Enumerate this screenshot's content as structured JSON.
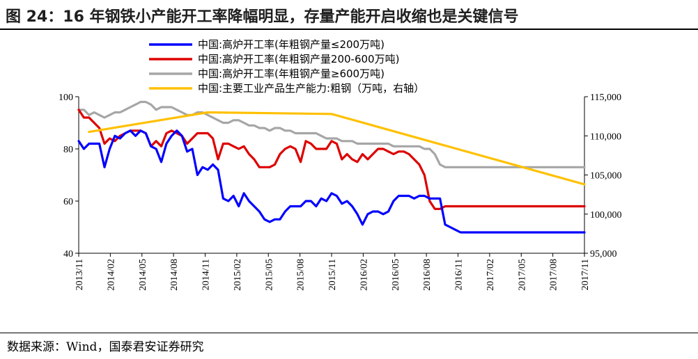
{
  "title": "图 24：16 年钢铁小产能开工率降幅明显，存量产能开启收缩也是关键信号",
  "source": "数据来源：Wind，国泰君安证券研究",
  "chart_data": {
    "type": "line",
    "x_tick_labels": [
      "2013/11",
      "2014/02",
      "2014/05",
      "2014/08",
      "2014/11",
      "2015/02",
      "2015/05",
      "2015/08",
      "2015/11",
      "2016/02",
      "2016/05",
      "2016/08",
      "2016/11",
      "2017/02",
      "2017/05",
      "2017/08",
      "2017/11"
    ],
    "x_range": [
      0,
      49
    ],
    "left_axis": {
      "ylim": [
        40,
        100
      ],
      "ticks": [
        40,
        60,
        80,
        100
      ]
    },
    "right_axis": {
      "ylim": [
        95000,
        115000
      ],
      "ticks": [
        95000,
        100000,
        105000,
        110000,
        115000
      ],
      "tick_labels": [
        "95,000",
        "100,000",
        "105,000",
        "110,000",
        "115,000"
      ]
    },
    "legend_position": "top",
    "series": [
      {
        "name": "中国:高炉开工率(年粗钢产量≤200万吨)",
        "color": "#0000ff",
        "axis": "left",
        "x": [
          0,
          0.5,
          1,
          1.5,
          2,
          2.5,
          3,
          3.5,
          4,
          4.5,
          5,
          5.5,
          6,
          6.5,
          7,
          7.5,
          8,
          8.5,
          9,
          9.5,
          10,
          10.5,
          11,
          11.5,
          12,
          12.5,
          13,
          13.5,
          14,
          14.5,
          15,
          15.5,
          16,
          16.5,
          17,
          17.5,
          18,
          18.5,
          19,
          19.5,
          20,
          20.5,
          21,
          21.5,
          22,
          22.5,
          23,
          23.5,
          24,
          24.5,
          25,
          25.5,
          26,
          26.5,
          27,
          27.5,
          28,
          28.5,
          29,
          29.5,
          30,
          30.5,
          31,
          31.5,
          32,
          32.5,
          33,
          33.5,
          34,
          34.5,
          35,
          35.5,
          36,
          36.5,
          37,
          37.5,
          38,
          38.5,
          39,
          39.5,
          40,
          40.5,
          41,
          41.5,
          42,
          42.5,
          43,
          43.5,
          44,
          44.5,
          45,
          45.5,
          46,
          46.5,
          47,
          47.5,
          48,
          48.5,
          49
        ],
        "values": [
          83,
          80,
          82,
          82,
          82,
          73,
          80,
          85,
          84,
          86,
          87,
          85,
          87,
          86,
          81,
          80,
          75,
          82,
          85,
          87,
          85,
          79,
          80,
          70,
          73,
          72,
          74,
          72,
          61,
          60,
          62,
          58,
          63,
          60,
          58,
          56,
          53,
          52,
          53,
          53,
          56,
          58,
          58,
          58,
          60,
          60,
          58,
          61,
          60,
          63,
          62,
          59,
          60,
          58,
          55,
          51,
          55,
          56,
          56,
          55,
          56,
          60,
          62,
          62,
          62,
          61,
          62,
          62,
          61,
          61,
          61,
          51,
          50,
          49,
          48,
          48,
          48,
          48,
          48,
          48,
          48,
          48,
          48,
          48,
          48,
          48,
          48,
          48,
          48,
          48,
          48,
          48,
          48,
          48,
          48,
          48,
          48,
          48,
          48
        ]
      },
      {
        "name": "中国:高炉开工率(年粗钢产量200-600万吨)",
        "color": "#dd0000",
        "axis": "left",
        "x": [
          0,
          0.5,
          1,
          1.5,
          2,
          2.5,
          3,
          3.5,
          4,
          4.5,
          5,
          5.5,
          6,
          6.5,
          7,
          7.5,
          8,
          8.5,
          9,
          9.5,
          10,
          10.5,
          11,
          11.5,
          12,
          12.5,
          13,
          13.5,
          14,
          14.5,
          15,
          15.5,
          16,
          16.5,
          17,
          17.5,
          18,
          18.5,
          19,
          19.5,
          20,
          20.5,
          21,
          21.5,
          22,
          22.5,
          23,
          23.5,
          24,
          24.5,
          25,
          25.5,
          26,
          26.5,
          27,
          27.5,
          28,
          28.5,
          29,
          29.5,
          30,
          30.5,
          31,
          31.5,
          32,
          32.5,
          33,
          33.5,
          34,
          34.5,
          35,
          35.5,
          36,
          36.5,
          37,
          37.5,
          38,
          38.5,
          39,
          39.5,
          40,
          40.5,
          41,
          41.5,
          42,
          42.5,
          43,
          43.5,
          44,
          44.5,
          45,
          45.5,
          46,
          46.5,
          47,
          47.5,
          48,
          48.5,
          49
        ],
        "values": [
          95,
          92,
          92,
          90,
          88,
          82,
          84,
          83,
          85,
          86,
          87,
          87,
          87,
          86,
          81,
          83,
          81,
          86,
          87,
          86,
          85,
          82,
          84,
          86,
          86,
          86,
          84,
          76,
          82,
          82,
          81,
          80,
          81,
          78,
          76,
          73,
          73,
          73,
          74,
          78,
          80,
          81,
          80,
          75,
          83,
          82,
          80,
          80,
          80,
          83,
          82,
          76,
          78,
          76,
          75,
          78,
          76,
          78,
          80,
          80,
          79,
          78,
          79,
          79,
          78,
          76,
          74,
          70,
          60,
          57,
          57,
          58,
          58,
          58,
          58,
          58,
          58,
          58,
          58,
          58,
          58,
          58,
          58,
          58,
          58,
          58,
          58,
          58,
          58,
          58,
          58,
          58,
          58,
          58,
          58,
          58,
          58,
          58,
          58
        ]
      },
      {
        "name": "中国:高炉开工率(年粗钢产量≥600万吨)",
        "color": "#a6a6a6",
        "axis": "left",
        "x": [
          0,
          0.5,
          1,
          1.5,
          2,
          2.5,
          3,
          3.5,
          4,
          4.5,
          5,
          5.5,
          6,
          6.5,
          7,
          7.5,
          8,
          8.5,
          9,
          9.5,
          10,
          10.5,
          11,
          11.5,
          12,
          12.5,
          13,
          13.5,
          14,
          14.5,
          15,
          15.5,
          16,
          16.5,
          17,
          17.5,
          18,
          18.5,
          19,
          19.5,
          20,
          20.5,
          21,
          21.5,
          22,
          22.5,
          23,
          23.5,
          24,
          24.5,
          25,
          25.5,
          26,
          26.5,
          27,
          27.5,
          28,
          28.5,
          29,
          29.5,
          30,
          30.5,
          31,
          31.5,
          32,
          32.5,
          33,
          33.5,
          34,
          34.5,
          35,
          35.5,
          36,
          36.5,
          37,
          37.5,
          38,
          38.5,
          39,
          39.5,
          40,
          40.5,
          41,
          41.5,
          42,
          42.5,
          43,
          43.5,
          44,
          44.5,
          45,
          45.5,
          46,
          46.5,
          47,
          47.5,
          48,
          48.5,
          49
        ],
        "values": [
          95,
          95,
          93,
          94,
          93,
          92,
          93,
          94,
          94,
          95,
          96,
          97,
          98,
          98,
          97,
          95,
          96,
          96,
          96,
          95,
          94,
          93,
          93,
          94,
          94,
          93,
          92,
          91,
          90,
          90,
          91,
          91,
          90,
          89,
          89,
          88,
          88,
          87,
          88,
          88,
          87,
          87,
          86,
          86,
          86,
          86,
          86,
          85,
          84,
          84,
          84,
          83,
          83,
          83,
          82,
          82,
          82,
          82,
          82,
          82,
          82,
          81,
          81,
          81,
          81,
          81,
          81,
          80,
          80,
          78,
          74,
          73,
          73,
          73,
          73,
          73,
          73,
          73,
          73,
          73,
          73,
          73,
          73,
          73,
          73,
          73,
          73,
          73,
          73,
          73,
          73,
          73,
          73,
          73,
          73,
          73,
          73,
          73,
          73
        ]
      },
      {
        "name": "中国:主要工业产品生产能力:粗钢（万吨，右轴）",
        "color": "#ffc000",
        "axis": "right",
        "x": [
          1,
          12.5,
          24.5,
          49
        ],
        "values": [
          110500,
          113000,
          112800,
          103800
        ]
      }
    ]
  }
}
